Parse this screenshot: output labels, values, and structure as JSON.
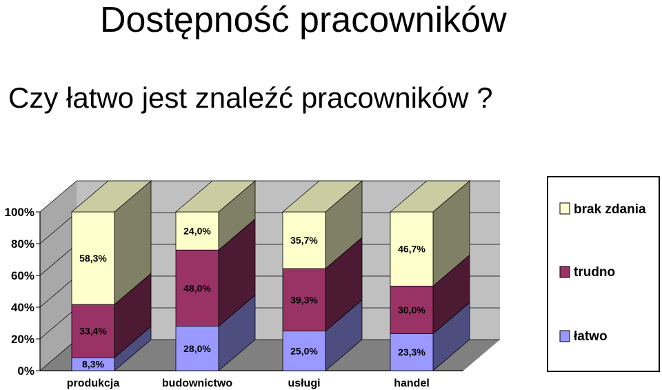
{
  "title": "Dostępność pracowników",
  "subtitle": "Czy łatwo jest znaleźć pracowników ?",
  "chart_data": {
    "type": "bar",
    "stacked": true,
    "three_d": true,
    "categories": [
      "produkcja",
      "budownictwo",
      "usługi",
      "handel"
    ],
    "series": [
      {
        "name": "łatwo",
        "values": [
          8.3,
          28.0,
          25.0,
          23.3
        ],
        "labels": [
          "8,3%",
          "28,0%",
          "25,0%",
          "23,3%"
        ],
        "color": "#9999ff"
      },
      {
        "name": "trudno",
        "values": [
          33.4,
          48.0,
          39.3,
          30.0
        ],
        "labels": [
          "33,4%",
          "48,0%",
          "39,3%",
          "30,0%"
        ],
        "color": "#993366"
      },
      {
        "name": "brak zdania",
        "values": [
          58.3,
          24.0,
          35.7,
          46.7
        ],
        "labels": [
          "58,3%",
          "24,0%",
          "35,7%",
          "46,7%"
        ],
        "color": "#ffffcc"
      }
    ],
    "y_ticks": [
      "0%",
      "20%",
      "40%",
      "60%",
      "80%",
      "100%"
    ],
    "ylim": [
      0,
      100
    ],
    "legend": [
      "brak zdania",
      "trudno",
      "łatwo"
    ],
    "legend_position": "right",
    "grid": true
  }
}
